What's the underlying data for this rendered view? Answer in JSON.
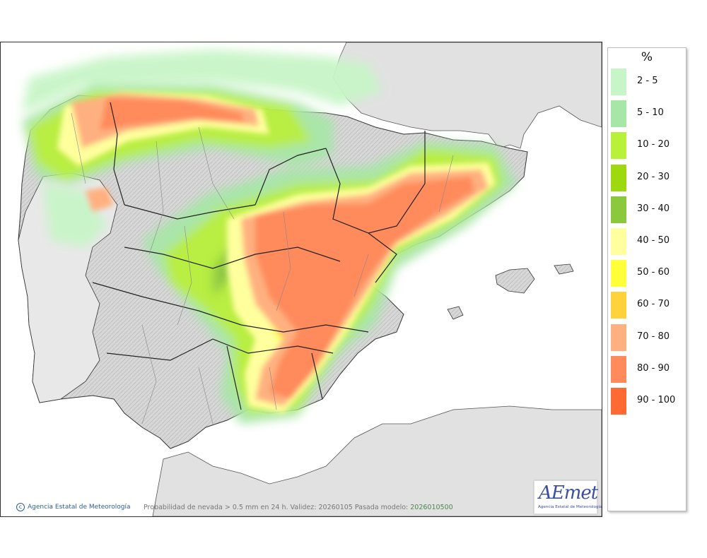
{
  "map": {
    "credit": "Agencia Estatal de Meteorología",
    "caption_main": "Probabilidad de nevada > 0.5 mm en 24 h. Validez: 20260105 Pasada modelo:",
    "caption_run": "2026010500",
    "logo_mark": "AEmet",
    "logo_sub": "Agencia Estatal de Meteorología"
  },
  "legend": {
    "unit": "%",
    "items": [
      {
        "label": "2 - 5",
        "color": "#c8f5c8"
      },
      {
        "label": "5 - 10",
        "color": "#a8e6a8"
      },
      {
        "label": "10 - 20",
        "color": "#b8f03a"
      },
      {
        "label": "20 - 30",
        "color": "#9ed80e"
      },
      {
        "label": "30 - 40",
        "color": "#8cc83c"
      },
      {
        "label": "40 - 50",
        "color": "#ffff9e"
      },
      {
        "label": "50 - 60",
        "color": "#ffff3a"
      },
      {
        "label": "60 - 70",
        "color": "#ffd23c"
      },
      {
        "label": "70 - 80",
        "color": "#ffb080"
      },
      {
        "label": "80 - 90",
        "color": "#ff8a5c"
      },
      {
        "label": "90 - 100",
        "color": "#ff6a32"
      }
    ]
  }
}
